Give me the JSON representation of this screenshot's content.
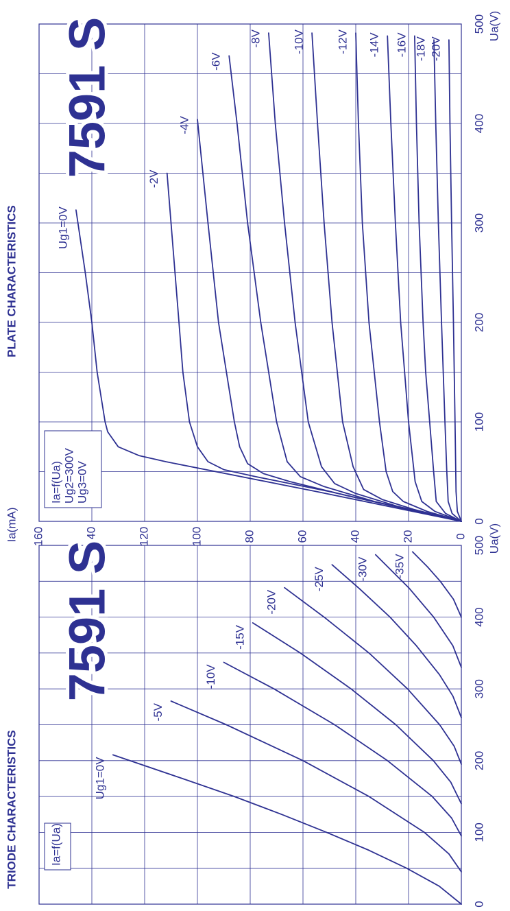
{
  "chart_data": [
    {
      "type": "line",
      "title": "PLATE CHARACTERISTICS",
      "watermark": "7591 S",
      "notes": [
        "Ia=f(Ua)",
        "Ug2=300V",
        "Ug3=0V"
      ],
      "xlabel": "Ua(V)",
      "ylabel": "Ia(mA)",
      "xlim": [
        0,
        500
      ],
      "xticks": [
        0,
        100,
        200,
        300,
        400,
        500
      ],
      "minor_xticks": [
        50,
        150,
        250,
        350,
        450
      ],
      "ylim": [
        0,
        160
      ],
      "yticks": [
        0,
        20,
        40,
        60,
        80,
        100,
        120,
        140,
        160
      ],
      "grid": true,
      "color": "#2e3192",
      "series": [
        {
          "name": "Ug1=0V",
          "x": [
            0,
            30,
            60,
            66,
            75,
            90,
            100,
            150,
            200,
            250,
            313
          ],
          "values": [
            0,
            55,
            112,
            122,
            130,
            134,
            135,
            138,
            140,
            142.5,
            146
          ]
        },
        {
          "name": "-2V",
          "x": [
            0,
            30,
            45,
            52,
            60,
            75,
            100,
            150,
            200,
            250,
            300,
            350
          ],
          "values": [
            0,
            50,
            78,
            90,
            96,
            100,
            103,
            105.5,
            107,
            108.5,
            110,
            111.5
          ]
        },
        {
          "name": "-4V",
          "x": [
            0,
            25,
            40,
            48,
            58,
            75,
            100,
            150,
            200,
            300,
            404
          ],
          "values": [
            0,
            42,
            65,
            75,
            81,
            84,
            86,
            89,
            92,
            96,
            100
          ]
        },
        {
          "name": "-6V",
          "x": [
            0,
            20,
            35,
            45,
            60,
            100,
            200,
            300,
            400,
            468
          ],
          "values": [
            0,
            33,
            52,
            61,
            66,
            70,
            76,
            81,
            85,
            88
          ]
        },
        {
          "name": "-8V",
          "x": [
            0,
            15,
            28,
            38,
            55,
            100,
            200,
            300,
            400,
            491
          ],
          "values": [
            0,
            24,
            40,
            48,
            53,
            58,
            63,
            67,
            70.5,
            73
          ]
        },
        {
          "name": "-10V",
          "x": [
            0,
            12,
            22,
            32,
            55,
            100,
            200,
            300,
            400,
            491
          ],
          "values": [
            0,
            18,
            30,
            37,
            41,
            45,
            49,
            52,
            54.5,
            56.6
          ]
        },
        {
          "name": "-12V",
          "x": [
            0,
            10,
            20,
            30,
            50,
            100,
            200,
            300,
            400,
            491
          ],
          "values": [
            0,
            13,
            22,
            26,
            28.5,
            31,
            35,
            37.5,
            39,
            40
          ]
        },
        {
          "name": "-14V",
          "x": [
            0,
            10,
            20,
            40,
            100,
            200,
            300,
            400,
            488
          ],
          "values": [
            0,
            10,
            15,
            17.5,
            20,
            23,
            25,
            26.7,
            28
          ]
        },
        {
          "name": "-16V",
          "x": [
            0,
            8,
            20,
            50,
            100,
            150,
            200,
            300,
            400,
            488
          ],
          "values": [
            0,
            6,
            9.5,
            10.5,
            12,
            13.5,
            14.5,
            16,
            17,
            17.7
          ]
        },
        {
          "name": "-18V",
          "x": [
            0,
            8,
            20,
            50,
            100,
            200,
            300,
            400,
            484
          ],
          "values": [
            0,
            3.5,
            5,
            5.5,
            6.2,
            7.5,
            8.7,
            9.7,
            10.4
          ]
        },
        {
          "name": "-20V",
          "x": [
            0,
            10,
            30,
            100,
            200,
            300,
            400,
            484
          ],
          "values": [
            0,
            1.5,
            2,
            2.4,
            3,
            3.7,
            4.3,
            4.7
          ]
        }
      ]
    },
    {
      "type": "line",
      "title": "TRIODE  CHARACTERISTICS",
      "watermark": "7591 S",
      "notes": [
        "Ia=f(Ua)"
      ],
      "xlabel": "Ua(V)",
      "xlim": [
        0,
        500
      ],
      "xticks": [
        0,
        100,
        200,
        300,
        400,
        500
      ],
      "minor_xticks": [
        50,
        150,
        250,
        350,
        450
      ],
      "ylim": [
        0,
        160
      ],
      "grid": true,
      "color": "#2e3192",
      "series": [
        {
          "name": "Ug1=0V",
          "x": [
            0,
            25,
            50,
            75,
            100,
            125,
            150,
            175,
            208
          ],
          "values": [
            0,
            8.4,
            20.7,
            35,
            51,
            68,
            86,
            105.6,
            132
          ]
        },
        {
          "name": "-5V",
          "x": [
            45,
            70,
            100,
            150,
            200,
            250,
            283
          ],
          "values": [
            0,
            4.7,
            14,
            35,
            60,
            89,
            110
          ]
        },
        {
          "name": "-10V",
          "x": [
            95,
            120,
            150,
            200,
            250,
            300,
            337
          ],
          "values": [
            0,
            3.7,
            11,
            28,
            48,
            71,
            90
          ]
        },
        {
          "name": "-15V",
          "x": [
            140,
            170,
            200,
            250,
            300,
            350,
            392
          ],
          "values": [
            0,
            4,
            10.6,
            24.8,
            41.8,
            61,
            79
          ]
        },
        {
          "name": "-20V",
          "x": [
            195,
            220,
            250,
            300,
            350,
            400,
            441
          ],
          "values": [
            0,
            2.7,
            8.2,
            20.4,
            35,
            52,
            67
          ]
        },
        {
          "name": "-25V",
          "x": [
            260,
            290,
            320,
            360,
            400,
            440,
            473
          ],
          "values": [
            0,
            3.2,
            8.3,
            17,
            27,
            38.7,
            49
          ]
        },
        {
          "name": "-30V",
          "x": [
            330,
            360,
            400,
            440,
            487
          ],
          "values": [
            0,
            3.2,
            10.5,
            19.7,
            32.5
          ]
        },
        {
          "name": "-35V",
          "x": [
            400,
            425,
            450,
            470,
            491
          ],
          "values": [
            0,
            3,
            8,
            12.8,
            18.5
          ]
        }
      ]
    }
  ]
}
